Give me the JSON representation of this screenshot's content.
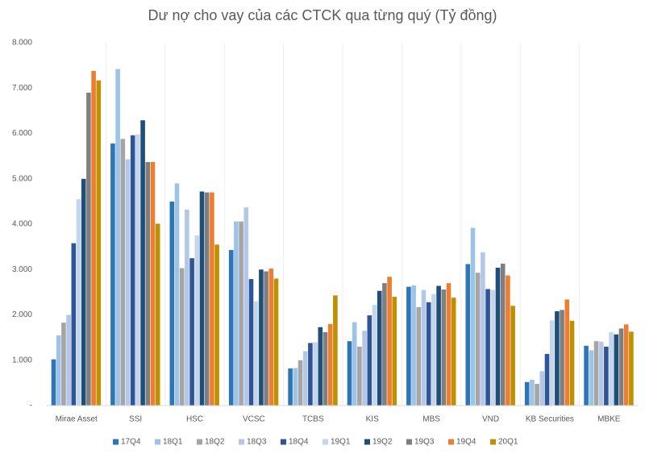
{
  "chart_data": {
    "type": "bar",
    "title": "Dư nợ cho vay của các CTCK qua từng quý (Tỷ đồng)",
    "categories": [
      "Mirae Asset",
      "SSI",
      "HSC",
      "VCSC",
      "TCBS",
      "KIS",
      "MBS",
      "VND",
      "KB Securities",
      "MBKE"
    ],
    "series": [
      {
        "name": "17Q4",
        "color": "#2e75b6",
        "values": [
          1020,
          5780,
          4500,
          3430,
          820,
          1420,
          2620,
          3120,
          520,
          1320
        ]
      },
      {
        "name": "18Q1",
        "color": "#9dc3e6",
        "values": [
          1550,
          7420,
          4900,
          4060,
          830,
          1840,
          2650,
          3920,
          570,
          1220
        ]
      },
      {
        "name": "18Q2",
        "color": "#a5a5a5",
        "values": [
          1830,
          5880,
          3030,
          4060,
          1000,
          1300,
          2170,
          2930,
          480,
          1420
        ]
      },
      {
        "name": "18Q3",
        "color": "#b4c7e7",
        "values": [
          2000,
          5430,
          4320,
          4370,
          1200,
          1650,
          2550,
          3380,
          760,
          1410
        ]
      },
      {
        "name": "18Q4",
        "color": "#2f5597",
        "values": [
          3580,
          5960,
          3250,
          2790,
          1380,
          1990,
          2280,
          2570,
          1140,
          1300
        ]
      },
      {
        "name": "19Q1",
        "color": "#c5d5ea",
        "values": [
          4550,
          5980,
          3750,
          2300,
          1400,
          2220,
          2460,
          2550,
          1880,
          1620
        ]
      },
      {
        "name": "19Q2",
        "color": "#1f4e79",
        "values": [
          5000,
          6290,
          4720,
          3000,
          1730,
          2530,
          2640,
          3040,
          2080,
          1570
        ]
      },
      {
        "name": "19Q3",
        "color": "#7f7f7f",
        "values": [
          6900,
          5370,
          4700,
          2960,
          1620,
          2700,
          2560,
          3130,
          2110,
          1700
        ]
      },
      {
        "name": "19Q4",
        "color": "#ed7d31",
        "values": [
          7380,
          5370,
          4700,
          3020,
          1800,
          2840,
          2700,
          2870,
          2340,
          1790
        ]
      },
      {
        "name": "20Q1",
        "color": "#bf9000",
        "values": [
          7170,
          4010,
          3550,
          2800,
          2430,
          2400,
          2380,
          2200,
          1870,
          1630
        ]
      }
    ],
    "ylim": [
      0,
      8000
    ],
    "yticks": [
      {
        "value": 0,
        "label": "-"
      },
      {
        "value": 1000,
        "label": "1.000"
      },
      {
        "value": 2000,
        "label": "2.000"
      },
      {
        "value": 3000,
        "label": "3.000"
      },
      {
        "value": 4000,
        "label": "4.000"
      },
      {
        "value": 5000,
        "label": "5.000"
      },
      {
        "value": 6000,
        "label": "6.000"
      },
      {
        "value": 7000,
        "label": "7.000"
      },
      {
        "value": 8000,
        "label": "8.000"
      }
    ],
    "legend": "bottom"
  }
}
